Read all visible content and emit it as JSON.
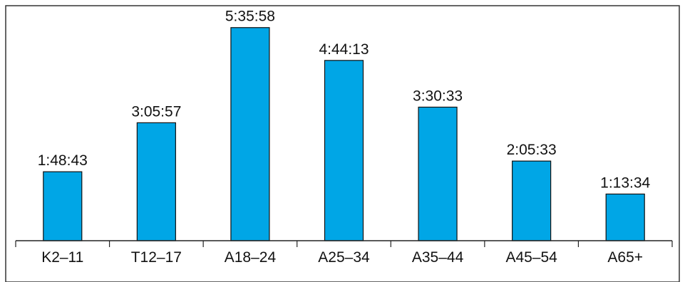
{
  "chart_data": {
    "type": "bar",
    "categories": [
      "K2–11",
      "T12–17",
      "A18–24",
      "A25–34",
      "A35–44",
      "A45–54",
      "A65+"
    ],
    "values": [
      1.8119,
      3.0992,
      5.5994,
      4.7369,
      3.5092,
      2.0925,
      1.2261
    ],
    "data_labels": [
      "1:48:43",
      "3:05:57",
      "5:35:58",
      "4:44:13",
      "3:30:33",
      "2:05:33",
      "1:13:34"
    ],
    "title": "",
    "xlabel": "",
    "ylabel": "",
    "ylim": [
      0,
      5.95
    ],
    "grid": false,
    "colors": {
      "bar": "#00A6E6",
      "bar_outline": "#111111",
      "axis": "#222222",
      "frame": "#333333"
    }
  }
}
